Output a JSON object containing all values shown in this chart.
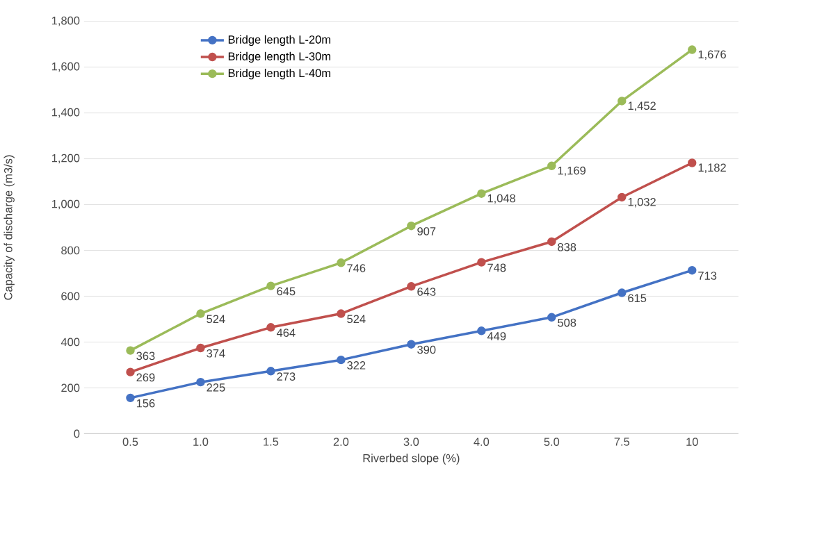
{
  "chart_data": {
    "type": "line",
    "xlabel": "Riverbed slope (%)",
    "ylabel": "Capacity of discharge (m3/s)",
    "categories": [
      "0.5",
      "1.0",
      "1.5",
      "2.0",
      "3.0",
      "4.0",
      "5.0",
      "7.5",
      "10"
    ],
    "series": [
      {
        "name": "Bridge length L-20m",
        "color": "#4472c4",
        "values": [
          156,
          225,
          273,
          322,
          390,
          449,
          508,
          615,
          713
        ],
        "value_labels": [
          "156",
          "225",
          "273",
          "322",
          "390",
          "449",
          "508",
          "615",
          "713"
        ]
      },
      {
        "name": "Bridge length L-30m",
        "color": "#c0504d",
        "values": [
          269,
          374,
          464,
          524,
          643,
          748,
          838,
          1032,
          1182
        ],
        "value_labels": [
          "269",
          "374",
          "464",
          "524",
          "643",
          "748",
          "838",
          "1,032",
          "1,182"
        ]
      },
      {
        "name": "Bridge length L-40m",
        "color": "#9bbb59",
        "values": [
          363,
          524,
          645,
          746,
          907,
          1048,
          1169,
          1452,
          1676
        ],
        "value_labels": [
          "363",
          "524",
          "645",
          "746",
          "907",
          "1,048",
          "1,169",
          "1,452",
          "1,676"
        ]
      }
    ],
    "ylim": [
      0,
      1800
    ],
    "yticks": [
      0,
      200,
      400,
      600,
      800,
      {
        "value": 1000,
        "label": "1,000"
      },
      {
        "value": 1200,
        "label": "1,200"
      },
      {
        "value": 1400,
        "label": "1,400"
      },
      {
        "value": 1600,
        "label": "1,600"
      },
      {
        "value": 1800,
        "label": "1,800"
      }
    ],
    "grid": "y",
    "legend": "top left",
    "marker": "circle",
    "line_style": "solid"
  }
}
